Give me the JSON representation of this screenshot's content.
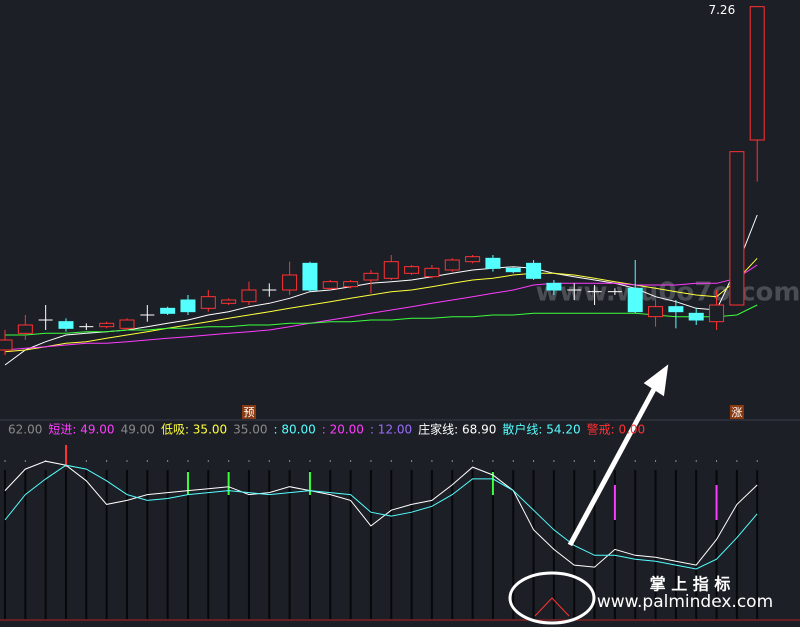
{
  "chart_data": [
    {
      "type": "candlestick",
      "open": [
        5.2,
        5.3,
        5.38,
        5.37,
        5.34,
        5.34,
        5.33,
        5.41,
        5.45,
        5.5,
        5.45,
        5.48,
        5.49,
        5.56,
        5.56,
        5.72,
        5.57,
        5.58,
        5.62,
        5.63,
        5.66,
        5.64,
        5.68,
        5.73,
        5.75,
        5.69,
        5.72,
        5.6,
        5.56,
        5.55,
        5.55,
        5.57,
        5.4,
        5.46,
        5.42,
        5.37,
        5.47,
        6.46
      ],
      "high": [
        5.32,
        5.41,
        5.47,
        5.39,
        5.36,
        5.37,
        5.39,
        5.47,
        5.46,
        5.53,
        5.56,
        5.51,
        5.61,
        5.6,
        5.73,
        5.73,
        5.62,
        5.62,
        5.68,
        5.77,
        5.71,
        5.71,
        5.75,
        5.77,
        5.77,
        5.7,
        5.74,
        5.62,
        5.6,
        5.59,
        5.57,
        5.74,
        5.5,
        5.5,
        5.45,
        5.56,
        6.39,
        7.26
      ],
      "low": [
        5.17,
        5.26,
        5.32,
        5.31,
        5.32,
        5.33,
        5.32,
        5.37,
        5.41,
        5.41,
        5.43,
        5.47,
        5.47,
        5.52,
        5.53,
        5.55,
        5.56,
        5.57,
        5.54,
        5.62,
        5.65,
        5.63,
        5.67,
        5.72,
        5.67,
        5.66,
        5.62,
        5.53,
        5.5,
        5.47,
        5.53,
        5.42,
        5.34,
        5.33,
        5.35,
        5.32,
        5.47,
        6.21
      ],
      "close": [
        5.26,
        5.35,
        5.38,
        5.33,
        5.34,
        5.36,
        5.38,
        5.41,
        5.42,
        5.43,
        5.52,
        5.5,
        5.56,
        5.56,
        5.65,
        5.56,
        5.61,
        5.61,
        5.66,
        5.73,
        5.7,
        5.69,
        5.74,
        5.76,
        5.69,
        5.67,
        5.63,
        5.56,
        5.56,
        5.55,
        5.55,
        5.43,
        5.46,
        5.43,
        5.38,
        5.47,
        6.39,
        7.26
      ],
      "high_label": "7.26",
      "ylim": [
        4.9,
        7.3
      ],
      "up_color": "#ff3232",
      "down_color": "#54ffff",
      "doji_color": "#ffffff",
      "series": [
        {
          "color": "#ffffff",
          "values": [
            5.11,
            5.2,
            5.25,
            5.29,
            5.3,
            5.31,
            5.32,
            5.34,
            5.36,
            5.38,
            5.41,
            5.43,
            5.46,
            5.48,
            5.51,
            5.55,
            5.56,
            5.58,
            5.6,
            5.61,
            5.62,
            5.64,
            5.66,
            5.68,
            5.69,
            5.7,
            5.69,
            5.66,
            5.64,
            5.62,
            5.6,
            5.57,
            5.52,
            5.49,
            5.45,
            5.44,
            5.7,
            6.01
          ]
        },
        {
          "color": "#ffff3c",
          "values": [
            5.19,
            5.2,
            5.22,
            5.24,
            5.25,
            5.27,
            5.29,
            5.31,
            5.33,
            5.35,
            5.37,
            5.39,
            5.41,
            5.43,
            5.45,
            5.47,
            5.49,
            5.51,
            5.53,
            5.55,
            5.56,
            5.58,
            5.6,
            5.62,
            5.63,
            5.65,
            5.66,
            5.66,
            5.65,
            5.63,
            5.61,
            5.59,
            5.57,
            5.55,
            5.53,
            5.52,
            5.62,
            5.75
          ]
        },
        {
          "color": "#ff3cff",
          "values": [
            5.2,
            5.21,
            5.22,
            5.23,
            5.24,
            5.24,
            5.25,
            5.26,
            5.27,
            5.28,
            5.29,
            5.3,
            5.31,
            5.32,
            5.34,
            5.36,
            5.38,
            5.4,
            5.42,
            5.44,
            5.46,
            5.48,
            5.5,
            5.52,
            5.54,
            5.56,
            5.59,
            5.6,
            5.6,
            5.6,
            5.6,
            5.59,
            5.59,
            5.59,
            5.6,
            5.6,
            5.63,
            5.71
          ]
        },
        {
          "color": "#3cff3c",
          "values": [
            5.29,
            5.29,
            5.3,
            5.3,
            5.31,
            5.31,
            5.32,
            5.32,
            5.33,
            5.33,
            5.34,
            5.34,
            5.35,
            5.35,
            5.36,
            5.36,
            5.37,
            5.37,
            5.38,
            5.38,
            5.39,
            5.39,
            5.4,
            5.4,
            5.41,
            5.41,
            5.42,
            5.42,
            5.42,
            5.42,
            5.42,
            5.42,
            5.41,
            5.4,
            5.4,
            5.4,
            5.41,
            5.47
          ]
        }
      ],
      "annotations": [
        {
          "index": 12,
          "text": "预"
        },
        {
          "index": 36,
          "text": "涨"
        }
      ]
    },
    {
      "type": "line",
      "ylim": [
        0,
        100
      ],
      "legend": [
        {
          "text": "62.00",
          "color": "#8a8a8a"
        },
        {
          "text": "短进: 49.00",
          "color": "#ff3cff"
        },
        {
          "text": "49.00",
          "color": "#8a8a8a"
        },
        {
          "text": "低吸: 35.00",
          "color": "#ffff3c"
        },
        {
          "text": "35.00",
          "color": "#8a8a8a"
        },
        {
          "text": ": 80.00",
          "color": "#54ffff"
        },
        {
          "text": ": 20.00",
          "color": "#ff3cff"
        },
        {
          "text": ": 12.00",
          "color": "#9a6cff"
        },
        {
          "text": "庄家线: 68.90",
          "color": "#ffffff"
        },
        {
          "text": "散户线: 54.20",
          "color": "#54ffff"
        },
        {
          "text": "警戒: 0.00",
          "color": "#ff3232"
        }
      ],
      "series": [
        {
          "color": "#ffffff",
          "values": [
            66,
            77,
            81,
            79,
            71,
            59,
            61,
            64,
            65,
            66,
            67,
            68,
            64,
            65,
            68,
            66,
            64,
            61,
            48,
            56,
            59,
            61,
            69,
            78,
            74,
            66,
            46,
            36,
            28,
            27,
            36,
            33,
            32,
            30,
            28,
            41,
            59,
            68.9
          ]
        },
        {
          "color": "#54ffff",
          "values": [
            51,
            64,
            72,
            79,
            77,
            71,
            64,
            61,
            62,
            64,
            65,
            66,
            65,
            64,
            65,
            66,
            65,
            64,
            55,
            53,
            55,
            58,
            64,
            72,
            72,
            66,
            56,
            46,
            38,
            33,
            33,
            31,
            30,
            28,
            26,
            31,
            42,
            54.2
          ]
        }
      ],
      "signals": [
        {
          "color": "#ff3232",
          "indices": [
            3
          ]
        },
        {
          "color": "#3cff3c",
          "indices": [
            9,
            11,
            15,
            24
          ]
        },
        {
          "color": "#ff3cff",
          "indices": [
            30,
            35
          ]
        }
      ]
    }
  ],
  "watermarks": [
    "www.wu0o7o.com",
    "掌 上 指 标",
    "www.palmindex.com"
  ]
}
